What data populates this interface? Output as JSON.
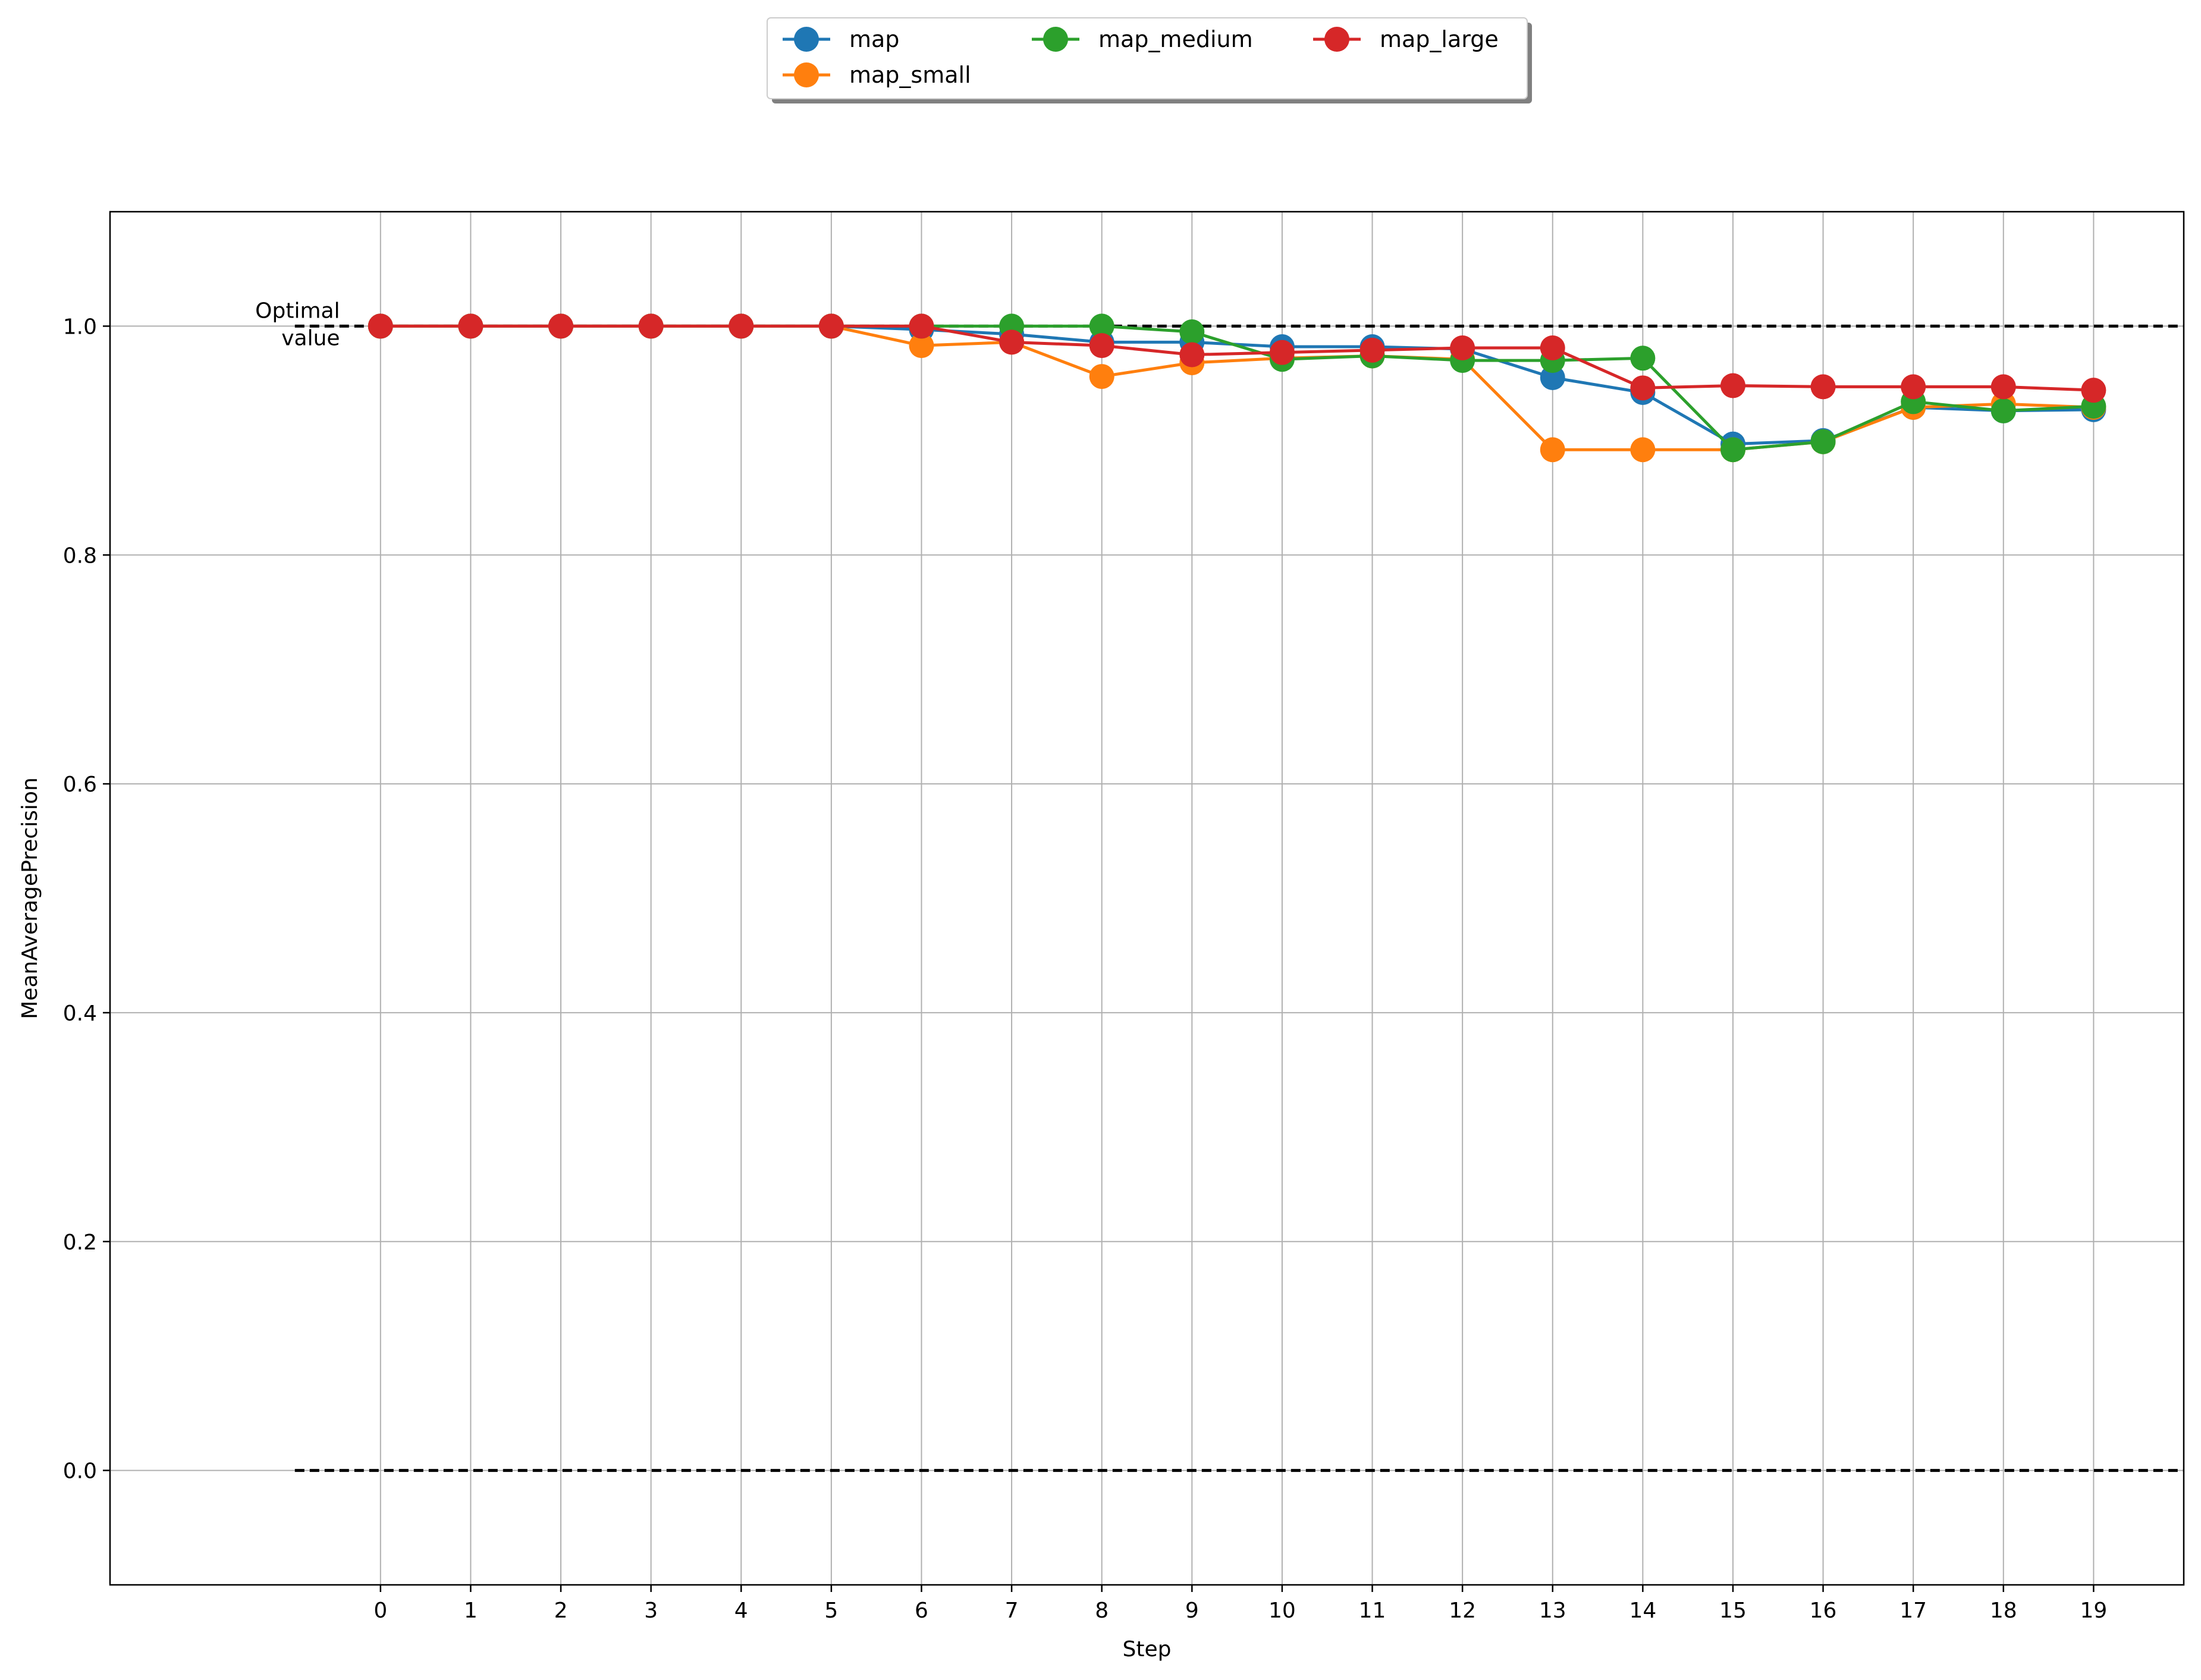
{
  "chart_data": {
    "type": "line",
    "title": "",
    "xlabel": "Step",
    "ylabel": "MeanAveragePrecision",
    "x": [
      0,
      1,
      2,
      3,
      4,
      5,
      6,
      7,
      8,
      9,
      10,
      11,
      12,
      13,
      14,
      15,
      16,
      17,
      18,
      19
    ],
    "xlim": [
      -3,
      20
    ],
    "ylim": [
      -0.1,
      1.1
    ],
    "yticks": [
      "0.0",
      "0.2",
      "0.4",
      "0.6",
      "0.8",
      "1.0"
    ],
    "xticks": [
      "0",
      "1",
      "2",
      "3",
      "4",
      "5",
      "6",
      "7",
      "8",
      "9",
      "10",
      "11",
      "12",
      "13",
      "14",
      "15",
      "16",
      "17",
      "18",
      "19"
    ],
    "grid": true,
    "legend_placement": "top-center",
    "reference_lines": [
      {
        "y": 1.0,
        "label": "Optimal value",
        "label_lines": [
          "Optimal",
          "value"
        ],
        "style": "dashed",
        "color": "#000000"
      },
      {
        "y": 0.0,
        "label": "",
        "label_lines": [],
        "style": "dashed",
        "color": "#000000"
      }
    ],
    "series": [
      {
        "name": "map",
        "color": "#1f77b4",
        "values": [
          1.0,
          1.0,
          1.0,
          1.0,
          1.0,
          1.0,
          0.997,
          0.993,
          0.986,
          0.986,
          0.982,
          0.982,
          0.98,
          0.955,
          0.942,
          0.897,
          0.9,
          0.929,
          0.926,
          0.927
        ]
      },
      {
        "name": "map_small",
        "color": "#ff7f0e",
        "values": [
          1.0,
          1.0,
          1.0,
          1.0,
          1.0,
          1.0,
          0.983,
          0.986,
          0.956,
          0.968,
          0.972,
          0.974,
          0.971,
          0.892,
          0.892,
          0.892,
          0.899,
          0.929,
          0.932,
          0.929
        ]
      },
      {
        "name": "map_medium",
        "color": "#2ca02c",
        "values": [
          1.0,
          1.0,
          1.0,
          1.0,
          1.0,
          1.0,
          1.0,
          1.0,
          1.0,
          0.995,
          0.971,
          0.974,
          0.97,
          0.97,
          0.972,
          0.892,
          0.899,
          0.934,
          0.926,
          0.93
        ]
      },
      {
        "name": "map_large",
        "color": "#d62728",
        "values": [
          1.0,
          1.0,
          1.0,
          1.0,
          1.0,
          1.0,
          1.0,
          0.986,
          0.983,
          0.975,
          0.977,
          0.979,
          0.981,
          0.981,
          0.946,
          0.948,
          0.947,
          0.947,
          0.947,
          0.944
        ]
      }
    ]
  }
}
